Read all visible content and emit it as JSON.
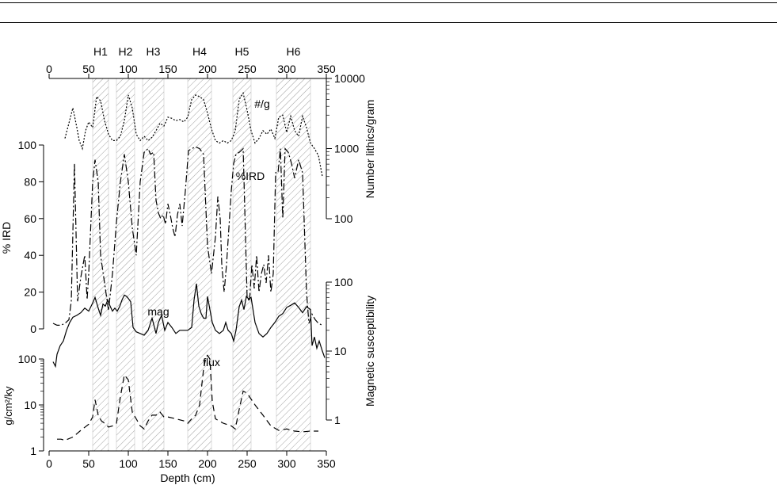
{
  "page": {
    "rule_color": "#000000"
  },
  "chart_data": {
    "type": "line",
    "xlabel": "Depth (cm)",
    "xlim": [
      0,
      350
    ],
    "x_ticks": [
      "0",
      "50",
      "100",
      "150",
      "200",
      "250",
      "300",
      "350"
    ],
    "left_axes": [
      {
        "label": "% IRD",
        "ylim": [
          0,
          100
        ],
        "ticks": [
          "0",
          "20",
          "40",
          "60",
          "80",
          "100"
        ]
      },
      {
        "label": "g/cm²/ky",
        "scale": "log",
        "ylim": [
          1,
          100
        ],
        "ticks": [
          "1",
          "10",
          "100"
        ]
      }
    ],
    "right_axes": [
      {
        "label": "Number lithics/gram",
        "scale": "log",
        "ylim": [
          100,
          10000
        ],
        "ticks": [
          "100",
          "1000",
          "10000"
        ]
      },
      {
        "label": "Magnetic susceptibility",
        "scale": "log",
        "ylim": [
          1,
          100
        ],
        "ticks": [
          "1",
          "10",
          "100"
        ]
      }
    ],
    "heinrich_events": [
      {
        "label": "H1",
        "range": [
          55,
          75
        ]
      },
      {
        "label": "H2",
        "range": [
          85,
          108
        ]
      },
      {
        "label": "H3",
        "range": [
          118,
          145
        ]
      },
      {
        "label": "H4",
        "range": [
          175,
          205
        ]
      },
      {
        "label": "H5",
        "range": [
          232,
          255
        ]
      },
      {
        "label": "H6",
        "range": [
          287,
          330
        ]
      }
    ],
    "series": [
      {
        "name": "#/g",
        "style": "dotted",
        "axis": "Number lithics/gram",
        "x": [
          20,
          25,
          30,
          35,
          38,
          42,
          46,
          50,
          55,
          60,
          65,
          70,
          75,
          80,
          85,
          90,
          95,
          100,
          105,
          110,
          115,
          120,
          125,
          130,
          135,
          140,
          145,
          150,
          155,
          160,
          165,
          170,
          175,
          180,
          185,
          190,
          195,
          200,
          205,
          210,
          215,
          220,
          225,
          230,
          235,
          240,
          245,
          250,
          255,
          260,
          265,
          270,
          275,
          280,
          285,
          290,
          295,
          300,
          305,
          310,
          315,
          320,
          325,
          330,
          335,
          340,
          345
        ],
        "y": [
          1400,
          2300,
          3800,
          2000,
          1300,
          1000,
          1800,
          2400,
          2000,
          5500,
          4800,
          2500,
          1600,
          1300,
          1300,
          1500,
          2500,
          5800,
          3800,
          1600,
          1300,
          1500,
          1300,
          1450,
          1800,
          2300,
          2100,
          2800,
          2700,
          2500,
          2600,
          2400,
          2800,
          5000,
          5800,
          5500,
          5000,
          3200,
          1900,
          1300,
          1200,
          1300,
          1200,
          1300,
          1800,
          5000,
          6200,
          3500,
          1800,
          1200,
          1400,
          1800,
          1600,
          1900,
          1400,
          2800,
          3000,
          1700,
          2900,
          1800,
          1500,
          2900,
          2000,
          1200,
          1000,
          800,
          400
        ]
      },
      {
        "name": "%IRD",
        "style": "dash-dot",
        "axis": "% IRD",
        "x": [
          5,
          10,
          15,
          20,
          25,
          28,
          32,
          36,
          40,
          45,
          48,
          50,
          55,
          58,
          62,
          65,
          70,
          75,
          80,
          85,
          90,
          95,
          100,
          105,
          110,
          115,
          120,
          125,
          128,
          132,
          135,
          138,
          141,
          144,
          147,
          150,
          153,
          156,
          159,
          162,
          165,
          168,
          172,
          176,
          180,
          185,
          190,
          195,
          200,
          205,
          210,
          213,
          216,
          218,
          221,
          224,
          227,
          230,
          233,
          236,
          240,
          245,
          250,
          253,
          256,
          259,
          262,
          265,
          268,
          271,
          274,
          277,
          280,
          283,
          286,
          289,
          292,
          295,
          298,
          302,
          306,
          310,
          315,
          320,
          325,
          328,
          332,
          336,
          340,
          345
        ],
        "y": [
          3,
          2,
          2,
          3,
          5,
          15,
          90,
          15,
          28,
          40,
          16,
          30,
          80,
          92,
          80,
          40,
          25,
          10,
          30,
          58,
          80,
          95,
          80,
          55,
          40,
          80,
          96,
          98,
          95,
          96,
          70,
          63,
          60,
          62,
          57,
          68,
          62,
          55,
          50,
          62,
          68,
          56,
          75,
          97,
          98,
          99,
          98,
          95,
          45,
          30,
          50,
          72,
          60,
          35,
          20,
          35,
          55,
          75,
          90,
          95,
          96,
          98,
          17,
          15,
          35,
          22,
          40,
          20,
          30,
          35,
          25,
          40,
          20,
          30,
          85,
          85,
          98,
          60,
          98,
          96,
          90,
          82,
          92,
          85,
          20,
          3,
          8,
          5,
          3,
          2
        ]
      },
      {
        "name": "mag",
        "style": "solid",
        "axis": "Magnetic susceptibility",
        "x": [
          5,
          8,
          10,
          14,
          18,
          22,
          26,
          30,
          35,
          40,
          45,
          50,
          55,
          58,
          62,
          65,
          68,
          71,
          74,
          77,
          80,
          83,
          86,
          89,
          92,
          95,
          98,
          100,
          103,
          106,
          110,
          115,
          120,
          125,
          130,
          135,
          138,
          142,
          146,
          150,
          155,
          160,
          165,
          170,
          175,
          180,
          183,
          186,
          189,
          192,
          195,
          198,
          200,
          203,
          206,
          210,
          215,
          220,
          223,
          226,
          230,
          233,
          236,
          240,
          243,
          246,
          249,
          252,
          255,
          260,
          265,
          270,
          275,
          280,
          285,
          290,
          295,
          300,
          305,
          310,
          315,
          320,
          325,
          330,
          332,
          335,
          338,
          341,
          345,
          348
        ],
        "y": [
          7,
          6,
          9,
          12,
          14,
          20,
          26,
          31,
          33,
          36,
          42,
          38,
          50,
          60,
          42,
          33,
          48,
          45,
          55,
          45,
          38,
          42,
          38,
          44,
          55,
          65,
          62,
          58,
          52,
          22,
          19,
          18,
          17,
          20,
          30,
          18,
          26,
          33,
          20,
          26,
          22,
          18,
          20,
          20,
          20,
          22,
          55,
          95,
          45,
          35,
          30,
          30,
          62,
          40,
          26,
          20,
          18,
          20,
          26,
          20,
          18,
          14,
          20,
          44,
          55,
          40,
          62,
          57,
          60,
          26,
          18,
          16,
          18,
          22,
          26,
          32,
          35,
          43,
          46,
          50,
          43,
          36,
          44,
          40,
          12,
          16,
          11,
          14,
          10,
          8
        ]
      },
      {
        "name": "flux",
        "style": "dashed",
        "axis": "g/cm²/ky",
        "x": [
          10,
          15,
          20,
          30,
          40,
          50,
          55,
          58,
          62,
          66,
          70,
          75,
          80,
          85,
          90,
          95,
          100,
          105,
          110,
          115,
          120,
          125,
          130,
          135,
          140,
          145,
          150,
          160,
          170,
          175,
          180,
          185,
          190,
          195,
          198,
          200,
          203,
          206,
          210,
          220,
          230,
          235,
          240,
          245,
          250,
          260,
          270,
          280,
          290,
          300,
          310,
          320,
          330,
          340
        ],
        "y": [
          1.8,
          1.8,
          1.7,
          2.0,
          2.8,
          3.8,
          5.5,
          13,
          6,
          4.5,
          4,
          3.3,
          3.5,
          4,
          15,
          45,
          35,
          7,
          5,
          3.5,
          3,
          4.5,
          6,
          6,
          7,
          5.5,
          5.5,
          5,
          4.5,
          4,
          5,
          6,
          10,
          60,
          110,
          120,
          100,
          12,
          5,
          4,
          3.5,
          3,
          8,
          20,
          18,
          10,
          6,
          3.5,
          2.8,
          3.0,
          2.7,
          2.6,
          2.7,
          2.7
        ]
      }
    ],
    "annotations": [
      "#/g",
      "%IRD",
      "mag",
      "flux"
    ]
  }
}
